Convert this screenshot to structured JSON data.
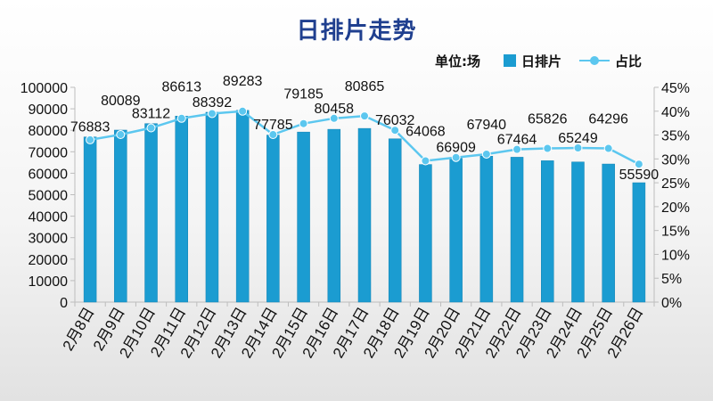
{
  "chart_data": {
    "type": "bar+line",
    "title": "日排片走势",
    "unit_label": "单位:场",
    "categories": [
      "2月8日",
      "2月9日",
      "2月10日",
      "2月11日",
      "2月12日",
      "2月13日",
      "2月14日",
      "2月15日",
      "2月16日",
      "2月17日",
      "2月18日",
      "2月19日",
      "2月20日",
      "2月21日",
      "2月22日",
      "2月23日",
      "2月24日",
      "2月25日",
      "2月26日"
    ],
    "series": [
      {
        "name": "日排片",
        "type": "bar",
        "axis": "left",
        "color": "#1b9cd1",
        "values": [
          76883,
          80089,
          83112,
          86613,
          88392,
          89283,
          77785,
          79185,
          80458,
          80865,
          76032,
          64068,
          66909,
          67940,
          67464,
          65826,
          65249,
          64296,
          55590
        ]
      },
      {
        "name": "占比",
        "type": "line",
        "axis": "right",
        "color": "#5cc7ef",
        "values": [
          0.34,
          0.351,
          0.365,
          0.385,
          0.395,
          0.4,
          0.351,
          0.374,
          0.385,
          0.39,
          0.36,
          0.296,
          0.303,
          0.31,
          0.32,
          0.322,
          0.323,
          0.322,
          0.289
        ]
      }
    ],
    "y_left": {
      "min": 0,
      "max": 100000,
      "step": 10000,
      "ticks": [
        "0",
        "10000",
        "20000",
        "30000",
        "40000",
        "50000",
        "60000",
        "70000",
        "80000",
        "90000",
        "100000"
      ]
    },
    "y_right": {
      "min": 0,
      "max": 0.45,
      "step": 0.05,
      "ticks": [
        "0%",
        "5%",
        "10%",
        "15%",
        "20%",
        "25%",
        "30%",
        "35%",
        "40%",
        "45%"
      ]
    },
    "grid": false,
    "legend_position": "top-right"
  }
}
